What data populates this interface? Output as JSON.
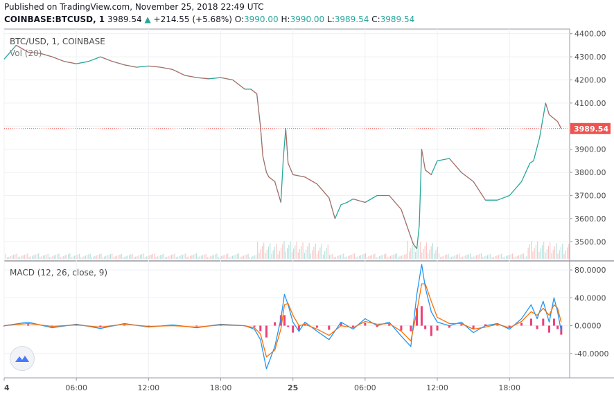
{
  "header": {
    "published": "Published on TradingView.com, November 25, 2018 22:49 UTC",
    "symbol": "COINBASE:BTCUSD, 1",
    "last": "3989.54",
    "change": "+214.55 (+5.68%)",
    "open_label": "O:",
    "open": "3990.00",
    "high_label": "H:",
    "high": "3990.00",
    "low_label": "L:",
    "low": "3989.54",
    "close_label": "C:",
    "close": "3989.54"
  },
  "price_pane": {
    "title": "BTC/USD, 1, COINBASE",
    "volume_label": "Vol (20)"
  },
  "macd_pane": {
    "title": "MACD (12, 26, close, 9)"
  },
  "icons": {
    "logo": "tradingview-logo-icon",
    "up_arrow": "up-triangle-icon"
  },
  "colors": {
    "up": "#26a69a",
    "down": "#ef5350",
    "macd": "#2196f3",
    "signal": "#ff6d00",
    "histogram": "#e91e63",
    "last_price_bg": "#ef5350",
    "price_line": "#ef5350"
  },
  "chart_data": [
    {
      "type": "line",
      "title": "BTC/USD, 1, COINBASE",
      "ylim": [
        3420,
        4420
      ],
      "y_ticks": [
        "4400.00",
        "4300.00",
        "4200.00",
        "4100.00",
        "4000.00",
        "3900.00",
        "3800.00",
        "3700.00",
        "3600.00",
        "3500.00"
      ],
      "x_ticks": [
        "4",
        "06:00",
        "12:00",
        "18:00",
        "25",
        "06:00",
        "12:00",
        "18:00"
      ],
      "x_tick_hours": [
        0,
        6,
        12,
        18,
        24,
        30,
        36,
        42
      ],
      "last_price": 3989.54,
      "series": [
        {
          "x_hours": [
            0,
            0.5,
            1,
            2,
            3,
            4,
            5,
            6,
            7,
            8,
            9,
            10,
            11,
            12,
            13,
            14,
            15,
            16,
            17,
            18,
            19,
            20,
            20.5,
            21,
            21.3,
            21.5,
            21.8,
            22,
            22.5,
            23,
            23.2,
            23.4,
            23.6,
            24,
            25,
            26,
            27,
            27.5,
            28,
            28.5,
            29,
            30,
            31,
            32,
            33,
            34,
            34.3,
            34.5,
            34.7,
            35,
            35.5,
            36,
            37,
            38,
            39,
            40,
            41,
            42,
            43,
            43.7,
            44,
            44.5,
            45,
            45.3,
            46,
            46.3
          ],
          "values": [
            4290,
            4320,
            4350,
            4320,
            4315,
            4300,
            4280,
            4270,
            4280,
            4300,
            4280,
            4265,
            4255,
            4260,
            4255,
            4245,
            4220,
            4210,
            4205,
            4210,
            4200,
            4160,
            4160,
            4140,
            4000,
            3870,
            3800,
            3780,
            3760,
            3670,
            3860,
            3990,
            3840,
            3790,
            3780,
            3750,
            3690,
            3600,
            3660,
            3670,
            3685,
            3670,
            3700,
            3700,
            3640,
            3490,
            3470,
            3570,
            3900,
            3810,
            3790,
            3850,
            3860,
            3800,
            3760,
            3680,
            3680,
            3700,
            3760,
            3840,
            3850,
            3950,
            4100,
            4050,
            4020,
            3989.54
          ]
        }
      ],
      "volume_label": "Vol (20)"
    },
    {
      "type": "line",
      "title": "MACD (12, 26, close, 9)",
      "ylim": [
        -75,
        92
      ],
      "y_ticks": [
        "80.0000",
        "40.0000",
        "0.0000",
        "-40.0000"
      ],
      "x_hours": [
        0,
        2,
        4,
        6,
        8,
        10,
        12,
        14,
        16,
        18,
        20,
        20.8,
        21.3,
        21.8,
        22.5,
        23,
        23.3,
        23.6,
        24,
        24.5,
        25,
        26,
        27,
        28,
        29,
        30,
        31,
        32,
        33,
        33.8,
        34.3,
        34.7,
        35,
        35.5,
        36,
        37,
        38,
        39,
        40,
        41,
        42,
        43,
        43.8,
        44.3,
        44.8,
        45.3,
        45.7,
        46,
        46.3
      ],
      "series": [
        {
          "name": "MACD",
          "values": [
            0,
            5,
            -3,
            2,
            -4,
            3,
            -2,
            1,
            -3,
            2,
            0,
            -5,
            -20,
            -62,
            -30,
            10,
            45,
            30,
            5,
            -8,
            5,
            -8,
            -20,
            5,
            -5,
            10,
            0,
            5,
            -15,
            -30,
            45,
            88,
            55,
            20,
            5,
            0,
            5,
            -10,
            0,
            3,
            -5,
            10,
            30,
            10,
            35,
            5,
            40,
            20,
            -8
          ]
        },
        {
          "name": "Signal",
          "values": [
            0,
            3,
            -1,
            1,
            -2,
            2,
            -1,
            0,
            -2,
            1,
            0,
            -3,
            -12,
            -45,
            -35,
            -5,
            30,
            32,
            15,
            0,
            2,
            -5,
            -14,
            0,
            -3,
            6,
            2,
            3,
            -8,
            -22,
            20,
            60,
            60,
            35,
            12,
            3,
            3,
            -5,
            -2,
            2,
            -3,
            6,
            20,
            15,
            25,
            15,
            30,
            25,
            5
          ]
        }
      ]
    }
  ]
}
